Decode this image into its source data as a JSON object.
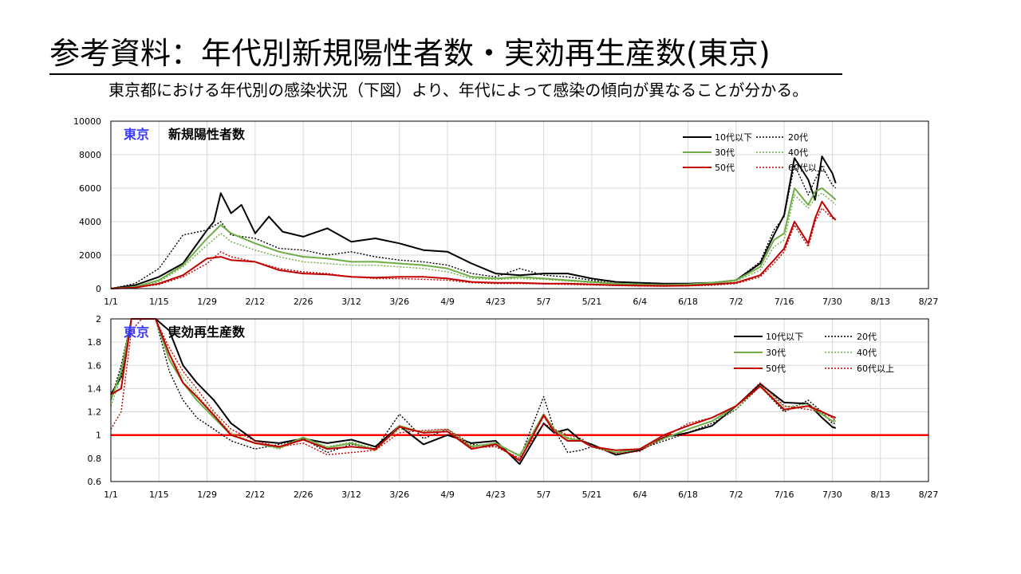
{
  "page": {
    "title": "参考資料：年代別新規陽性者数・実効再生産数(東京)",
    "subtitle": "東京都における年代別の感染状況（下図）より、年代によって感染の傾向が異なることが分かる。"
  },
  "colors": {
    "black": "#000000",
    "green": "#70ad47",
    "red": "#c00000",
    "baseline": "#ff0000",
    "region_label": "#3a3aff"
  },
  "chart_data": [
    {
      "type": "line",
      "region_label": "東京",
      "title": "新規陽性者数",
      "x_axis": {
        "range": [
          "1/1",
          "8/27"
        ],
        "tick_labels": [
          "1/1",
          "1/15",
          "1/29",
          "2/12",
          "2/26",
          "3/12",
          "3/26",
          "4/9",
          "4/23",
          "5/7",
          "5/21",
          "6/4",
          "6/18",
          "7/2",
          "7/16",
          "7/30",
          "8/13",
          "8/27"
        ]
      },
      "ylim": [
        0,
        10000
      ],
      "y_ticks": [
        0,
        2000,
        4000,
        6000,
        8000,
        10000
      ],
      "grid": true,
      "legend_position": "top-right",
      "legend": [
        "10代以下",
        "20代",
        "30代",
        "40代",
        "50代",
        "60代以上"
      ],
      "series": [
        {
          "name": "10代以下",
          "color": "#000000",
          "style": "solid",
          "x": [
            0,
            7,
            14,
            21,
            28,
            30,
            32,
            35,
            38,
            42,
            46,
            50,
            56,
            63,
            70,
            77,
            84,
            91,
            98,
            105,
            112,
            119,
            126,
            133,
            140,
            147,
            154,
            161,
            168,
            175,
            182,
            189,
            193,
            196,
            199,
            203,
            205,
            207,
            210,
            211
          ],
          "y": [
            0,
            200,
            700,
            1500,
            3500,
            4000,
            5700,
            4500,
            5000,
            3300,
            4300,
            3400,
            3100,
            3600,
            2800,
            3000,
            2700,
            2300,
            2200,
            1500,
            900,
            800,
            900,
            900,
            600,
            400,
            350,
            300,
            300,
            350,
            500,
            1500,
            3200,
            4400,
            7800,
            6500,
            5300,
            7900,
            6900,
            6300
          ]
        },
        {
          "name": "20代",
          "color": "#000000",
          "style": "dotted",
          "x": [
            0,
            7,
            14,
            21,
            28,
            32,
            35,
            42,
            49,
            56,
            63,
            70,
            77,
            84,
            91,
            98,
            105,
            112,
            119,
            126,
            133,
            140,
            147,
            154,
            161,
            168,
            175,
            182,
            189,
            193,
            196,
            199,
            203,
            205,
            207,
            210,
            211
          ],
          "y": [
            0,
            300,
            1200,
            3200,
            3500,
            4000,
            3200,
            3000,
            2400,
            2300,
            2000,
            2200,
            1900,
            1700,
            1600,
            1400,
            900,
            700,
            1200,
            800,
            700,
            500,
            300,
            250,
            200,
            200,
            300,
            500,
            1600,
            3500,
            4300,
            7400,
            5600,
            6500,
            7300,
            6200,
            6000
          ]
        },
        {
          "name": "30代",
          "color": "#70ad47",
          "style": "solid",
          "x": [
            0,
            7,
            14,
            21,
            28,
            32,
            35,
            42,
            49,
            56,
            63,
            70,
            77,
            84,
            91,
            98,
            105,
            112,
            119,
            126,
            133,
            140,
            147,
            154,
            161,
            168,
            175,
            182,
            189,
            193,
            196,
            199,
            203,
            205,
            207,
            210,
            211
          ],
          "y": [
            0,
            100,
            500,
            1400,
            3000,
            3800,
            3300,
            2700,
            2200,
            1900,
            1800,
            1600,
            1600,
            1500,
            1400,
            1200,
            700,
            600,
            700,
            600,
            500,
            400,
            300,
            250,
            220,
            250,
            350,
            500,
            1300,
            2900,
            3300,
            6000,
            5000,
            5800,
            6000,
            5500,
            5300
          ]
        },
        {
          "name": "40代",
          "color": "#70ad47",
          "style": "dotted",
          "x": [
            0,
            7,
            14,
            21,
            28,
            32,
            35,
            42,
            49,
            56,
            63,
            70,
            77,
            84,
            91,
            98,
            105,
            112,
            119,
            126,
            133,
            140,
            147,
            154,
            161,
            168,
            175,
            182,
            189,
            193,
            196,
            199,
            203,
            205,
            207,
            210,
            211
          ],
          "y": [
            0,
            100,
            400,
            1300,
            2600,
            3300,
            2800,
            2300,
            1900,
            1600,
            1500,
            1400,
            1400,
            1300,
            1200,
            1000,
            600,
            550,
            600,
            550,
            450,
            350,
            280,
            230,
            200,
            220,
            300,
            450,
            1100,
            2500,
            2900,
            5600,
            4800,
            5400,
            5700,
            5200,
            5000
          ]
        },
        {
          "name": "50代",
          "color": "#c00000",
          "style": "solid",
          "x": [
            0,
            7,
            14,
            21,
            28,
            32,
            35,
            42,
            49,
            56,
            63,
            70,
            77,
            84,
            91,
            98,
            105,
            112,
            119,
            126,
            133,
            140,
            147,
            154,
            161,
            168,
            175,
            182,
            189,
            193,
            196,
            199,
            203,
            205,
            207,
            210,
            211
          ],
          "y": [
            0,
            50,
            300,
            800,
            1800,
            1900,
            1700,
            1600,
            1100,
            900,
            850,
            700,
            650,
            700,
            700,
            600,
            400,
            350,
            350,
            300,
            300,
            250,
            200,
            180,
            160,
            180,
            250,
            350,
            800,
            1700,
            2400,
            4000,
            2700,
            4200,
            5200,
            4300,
            4100
          ]
        },
        {
          "name": "60代以上",
          "color": "#c00000",
          "style": "dotted",
          "x": [
            0,
            7,
            14,
            21,
            28,
            32,
            35,
            42,
            49,
            56,
            63,
            70,
            77,
            84,
            91,
            98,
            105,
            112,
            119,
            126,
            133,
            140,
            147,
            154,
            161,
            168,
            175,
            182,
            189,
            193,
            196,
            199,
            203,
            205,
            207,
            210,
            211
          ],
          "y": [
            0,
            50,
            250,
            700,
            1500,
            2200,
            1900,
            1600,
            1200,
            1000,
            900,
            700,
            600,
            600,
            550,
            500,
            350,
            300,
            300,
            280,
            250,
            220,
            180,
            150,
            140,
            160,
            200,
            300,
            700,
            1500,
            2200,
            3800,
            2500,
            4000,
            4800,
            4200,
            4100
          ]
        }
      ]
    },
    {
      "type": "line",
      "region_label": "東京",
      "title": "実効再生産数",
      "x_axis": {
        "range": [
          "1/1",
          "8/27"
        ],
        "tick_labels": [
          "1/1",
          "1/15",
          "1/29",
          "2/12",
          "2/26",
          "3/12",
          "3/26",
          "4/9",
          "4/23",
          "5/7",
          "5/21",
          "6/4",
          "6/18",
          "7/2",
          "7/16",
          "7/30",
          "8/13",
          "8/27"
        ]
      },
      "ylim": [
        0.6,
        2.0
      ],
      "y_ticks": [
        0.6,
        0.8,
        1,
        1.2,
        1.4,
        1.6,
        1.8,
        2
      ],
      "grid": true,
      "legend_position": "top-right",
      "legend": [
        "10代以下",
        "20代",
        "30代",
        "40代",
        "50代",
        "60代以上"
      ],
      "reference_line": 1,
      "series": [
        {
          "name": "10代以下",
          "color": "#000000",
          "style": "solid",
          "x": [
            0,
            3,
            6,
            9,
            13,
            17,
            21,
            25,
            30,
            35,
            42,
            49,
            56,
            63,
            70,
            77,
            84,
            91,
            98,
            105,
            112,
            119,
            126,
            129,
            133,
            137,
            140,
            147,
            154,
            161,
            168,
            175,
            182,
            189,
            196,
            203,
            207,
            210,
            211
          ],
          "y": [
            1.35,
            1.5,
            2.1,
            2.4,
            2.3,
            1.9,
            1.6,
            1.45,
            1.3,
            1.1,
            0.95,
            0.93,
            0.97,
            0.93,
            0.96,
            0.9,
            1.08,
            0.92,
            1.0,
            0.93,
            0.95,
            0.75,
            1.1,
            1.02,
            1.05,
            0.95,
            0.92,
            0.83,
            0.87,
            0.98,
            1.02,
            1.08,
            1.25,
            1.44,
            1.28,
            1.27,
            1.15,
            1.07,
            1.06
          ]
        },
        {
          "name": "20代",
          "color": "#000000",
          "style": "dotted",
          "x": [
            0,
            3,
            6,
            9,
            13,
            17,
            21,
            25,
            30,
            35,
            42,
            49,
            56,
            63,
            70,
            77,
            84,
            91,
            98,
            105,
            112,
            119,
            126,
            129,
            133,
            137,
            140,
            147,
            154,
            161,
            168,
            175,
            182,
            189,
            196,
            203,
            207,
            210,
            211
          ],
          "y": [
            1.3,
            1.6,
            2.3,
            2.5,
            2.0,
            1.55,
            1.3,
            1.15,
            1.05,
            0.95,
            0.88,
            0.92,
            0.97,
            0.85,
            0.92,
            0.88,
            1.18,
            0.97,
            1.05,
            0.92,
            0.9,
            0.8,
            1.33,
            1.05,
            0.85,
            0.87,
            0.9,
            0.85,
            0.88,
            0.95,
            1.02,
            1.1,
            1.22,
            1.42,
            1.2,
            1.3,
            1.2,
            1.1,
            1.1
          ]
        },
        {
          "name": "30代",
          "color": "#70ad47",
          "style": "solid",
          "x": [
            0,
            3,
            6,
            9,
            13,
            17,
            21,
            25,
            30,
            35,
            42,
            49,
            56,
            63,
            70,
            77,
            84,
            91,
            98,
            105,
            112,
            119,
            126,
            129,
            133,
            137,
            140,
            147,
            154,
            161,
            168,
            175,
            182,
            189,
            196,
            203,
            207,
            210,
            211
          ],
          "y": [
            1.3,
            1.55,
            2.2,
            2.3,
            2.1,
            1.65,
            1.45,
            1.3,
            1.15,
            1.0,
            0.93,
            0.89,
            0.98,
            0.89,
            0.93,
            0.87,
            1.08,
            1.02,
            1.03,
            0.9,
            0.93,
            0.82,
            1.18,
            1.05,
            0.97,
            0.95,
            0.9,
            0.85,
            0.88,
            0.97,
            1.05,
            1.12,
            1.25,
            1.42,
            1.22,
            1.25,
            1.18,
            1.12,
            1.12
          ]
        },
        {
          "name": "40代",
          "color": "#70ad47",
          "style": "dotted",
          "x": [
            0,
            3,
            6,
            9,
            13,
            17,
            21,
            25,
            30,
            35,
            42,
            49,
            56,
            63,
            70,
            77,
            84,
            91,
            98,
            105,
            112,
            119,
            126,
            129,
            133,
            137,
            140,
            147,
            154,
            161,
            168,
            175,
            182,
            189,
            196,
            203,
            207,
            210,
            211
          ],
          "y": [
            1.25,
            1.5,
            2.1,
            2.25,
            2.05,
            1.7,
            1.5,
            1.35,
            1.18,
            1.02,
            0.93,
            0.88,
            0.97,
            0.9,
            0.94,
            0.88,
            1.05,
            1.03,
            1.05,
            0.91,
            0.92,
            0.83,
            1.15,
            1.05,
            0.98,
            0.96,
            0.9,
            0.85,
            0.88,
            0.97,
            1.05,
            1.12,
            1.22,
            1.43,
            1.24,
            1.27,
            1.2,
            1.15,
            1.14
          ]
        },
        {
          "name": "50代",
          "color": "#c00000",
          "style": "solid",
          "x": [
            0,
            3,
            6,
            9,
            13,
            17,
            21,
            25,
            30,
            35,
            42,
            49,
            56,
            63,
            70,
            77,
            84,
            91,
            98,
            105,
            112,
            119,
            126,
            129,
            133,
            137,
            140,
            147,
            154,
            161,
            168,
            175,
            182,
            189,
            196,
            203,
            207,
            210,
            211
          ],
          "y": [
            1.35,
            1.4,
            2.0,
            2.2,
            2.1,
            1.7,
            1.45,
            1.33,
            1.17,
            1.0,
            0.93,
            0.9,
            0.96,
            0.88,
            0.9,
            0.88,
            1.07,
            1.02,
            1.03,
            0.88,
            0.92,
            0.78,
            1.17,
            1.03,
            0.95,
            0.95,
            0.9,
            0.87,
            0.88,
            1.0,
            1.08,
            1.15,
            1.25,
            1.42,
            1.22,
            1.25,
            1.2,
            1.16,
            1.15
          ]
        },
        {
          "name": "60代以上",
          "color": "#c00000",
          "style": "dotted",
          "x": [
            0,
            3,
            6,
            9,
            13,
            17,
            21,
            25,
            30,
            35,
            42,
            49,
            56,
            63,
            70,
            77,
            84,
            91,
            98,
            105,
            112,
            119,
            126,
            129,
            133,
            137,
            140,
            147,
            154,
            161,
            168,
            175,
            182,
            189,
            196,
            203,
            207,
            210,
            211
          ],
          "y": [
            1.05,
            1.2,
            1.9,
            2.3,
            2.2,
            1.75,
            1.55,
            1.4,
            1.2,
            1.05,
            0.95,
            0.9,
            0.93,
            0.83,
            0.85,
            0.87,
            1.02,
            1.04,
            1.05,
            0.89,
            0.9,
            0.8,
            1.1,
            1.05,
            1.0,
            0.97,
            0.9,
            0.84,
            0.86,
            0.98,
            1.1,
            1.15,
            1.25,
            1.45,
            1.25,
            1.22,
            1.2,
            1.15,
            1.12
          ]
        }
      ]
    }
  ]
}
